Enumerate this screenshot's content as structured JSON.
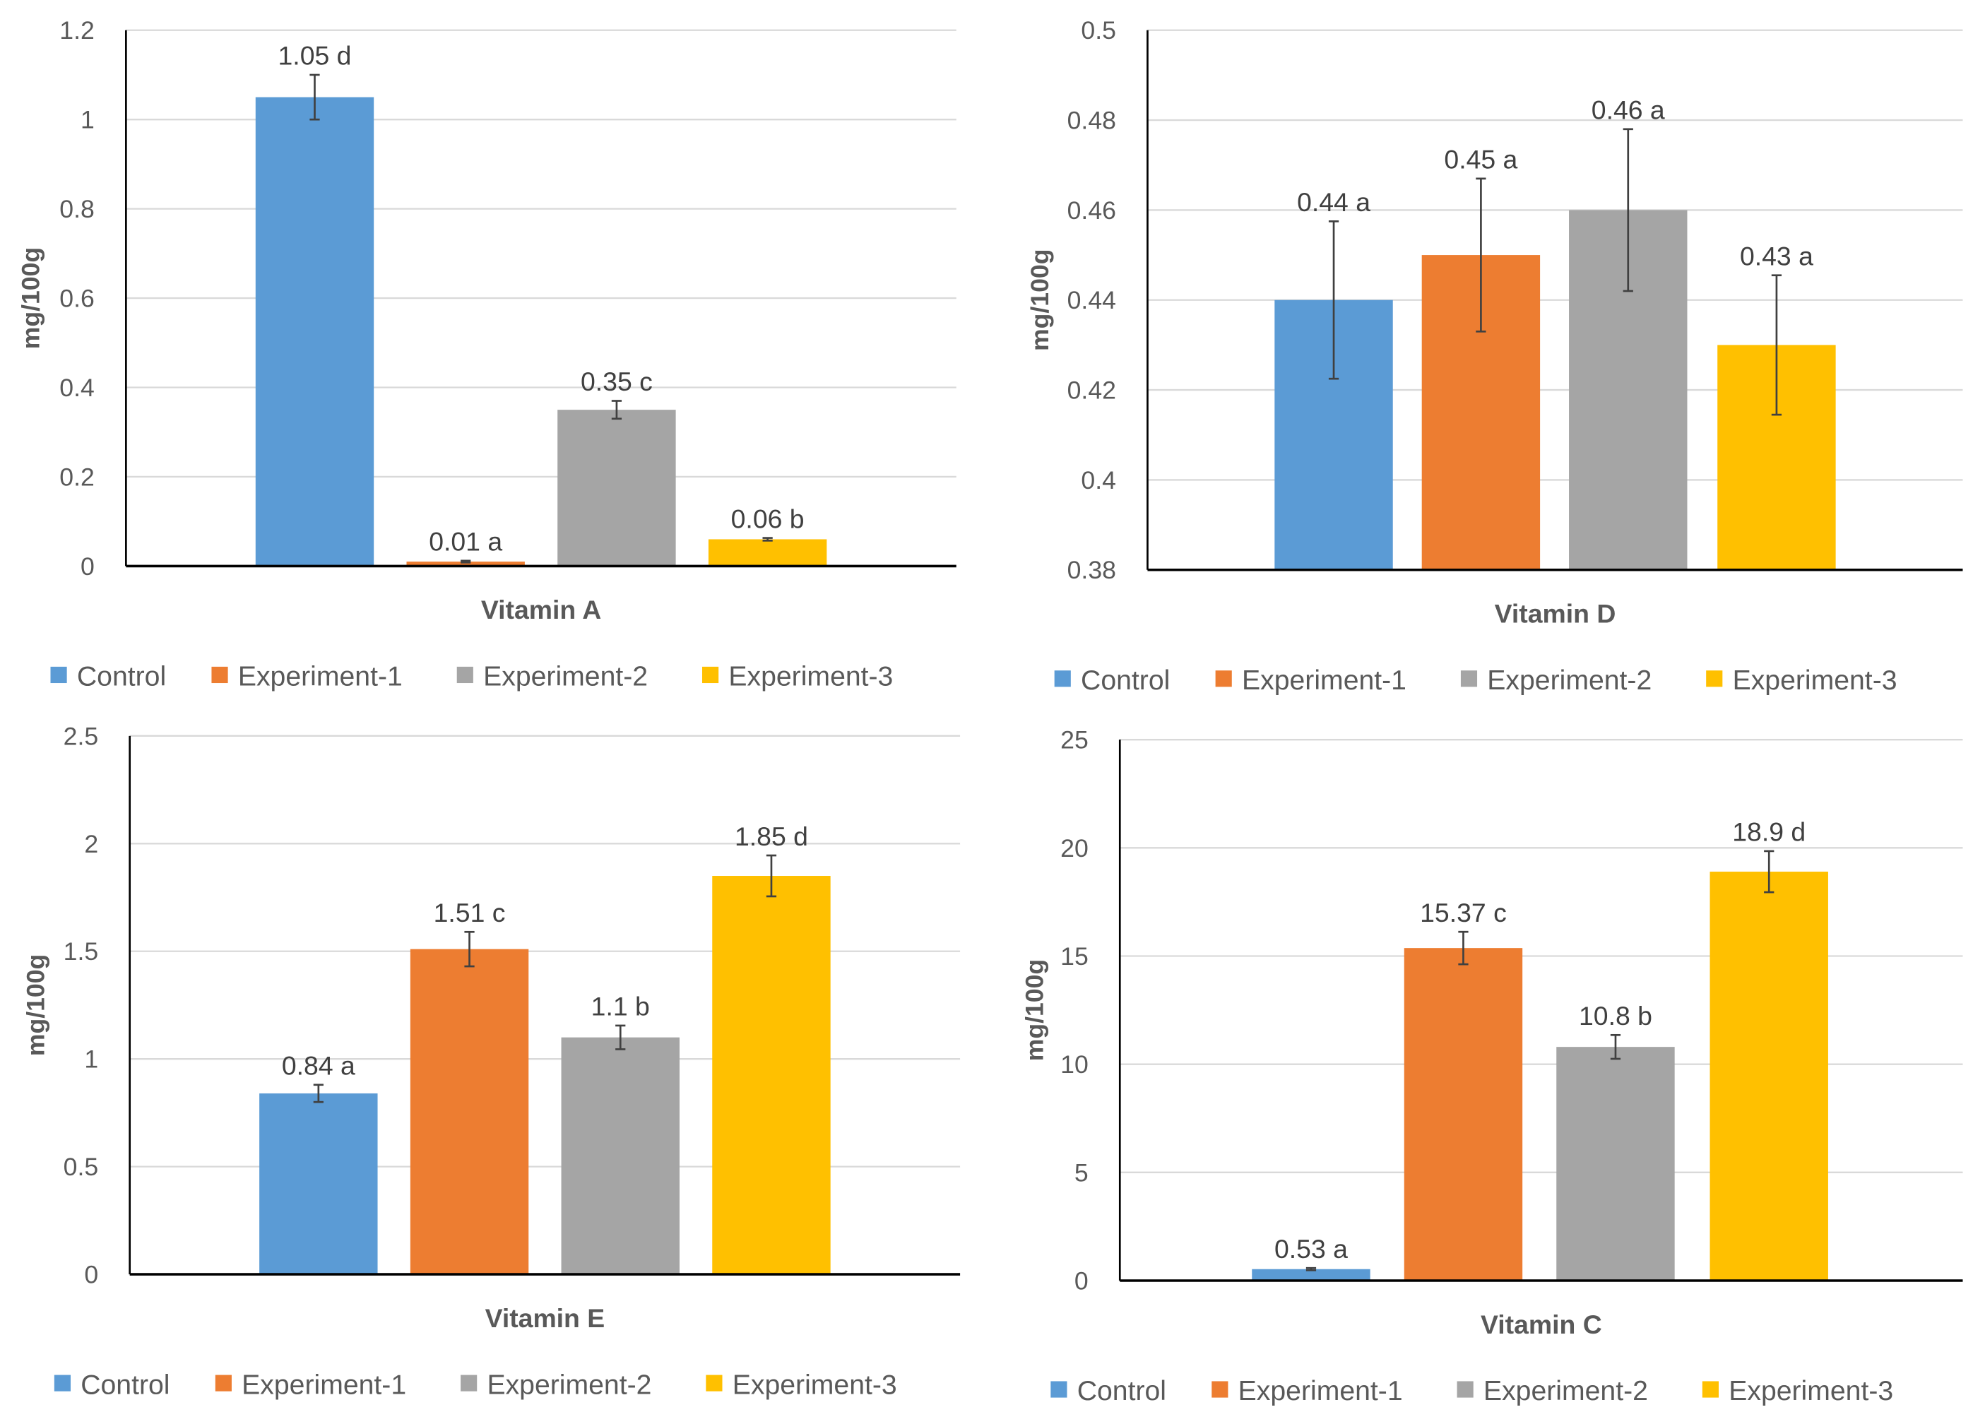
{
  "chart_data": [
    {
      "type": "bar",
      "title": "Vitamin A",
      "xlabel": "Vitamin A",
      "ylabel": "mg/100g",
      "ylim": [
        0,
        1.2
      ],
      "yticks": [
        "0",
        "0.2",
        "0.4",
        "0.6",
        "0.8",
        "1",
        "1.2"
      ],
      "ytick_values": [
        0,
        0.2,
        0.4,
        0.6,
        0.8,
        1,
        1.2
      ],
      "grid": true,
      "legend_position": "bottom",
      "series": [
        {
          "name": "Control",
          "value": 1.05,
          "error": 0.05,
          "label": "1.05 d"
        },
        {
          "name": "Experiment-1",
          "value": 0.01,
          "error": 0.002,
          "label": "0.01 a"
        },
        {
          "name": "Experiment-2",
          "value": 0.35,
          "error": 0.02,
          "label": "0.35 c"
        },
        {
          "name": "Experiment-3",
          "value": 0.06,
          "error": 0.003,
          "label": "0.06 b"
        }
      ]
    },
    {
      "type": "bar",
      "title": "Vitamin D",
      "xlabel": "Vitamin D",
      "ylabel": "mg/100g",
      "ylim": [
        0.38,
        0.5
      ],
      "yticks": [
        "0.38",
        "0.4",
        "0.42",
        "0.44",
        "0.46",
        "0.48",
        "0.5"
      ],
      "ytick_values": [
        0.38,
        0.4,
        0.42,
        0.44,
        0.46,
        0.48,
        0.5
      ],
      "grid": true,
      "legend_position": "bottom",
      "series": [
        {
          "name": "Control",
          "value": 0.44,
          "error": 0.0175,
          "label": "0.44 a"
        },
        {
          "name": "Experiment-1",
          "value": 0.45,
          "error": 0.017,
          "label": "0.45 a"
        },
        {
          "name": "Experiment-2",
          "value": 0.46,
          "error": 0.018,
          "label": "0.46 a"
        },
        {
          "name": "Experiment-3",
          "value": 0.43,
          "error": 0.0155,
          "label": "0.43 a"
        }
      ]
    },
    {
      "type": "bar",
      "title": "Vitamin E",
      "xlabel": "Vitamin E",
      "ylabel": "mg/100g",
      "ylim": [
        0,
        2.5
      ],
      "yticks": [
        "0",
        "0.5",
        "1",
        "1.5",
        "2",
        "2.5"
      ],
      "ytick_values": [
        0,
        0.5,
        1,
        1.5,
        2,
        2.5
      ],
      "grid": true,
      "legend_position": "bottom",
      "series": [
        {
          "name": "Control",
          "value": 0.84,
          "error": 0.04,
          "label": "0.84 a"
        },
        {
          "name": "Experiment-1",
          "value": 1.51,
          "error": 0.08,
          "label": "1.51 c"
        },
        {
          "name": "Experiment-2",
          "value": 1.1,
          "error": 0.055,
          "label": "1.1 b"
        },
        {
          "name": "Experiment-3",
          "value": 1.85,
          "error": 0.095,
          "label": "1.85 d"
        }
      ]
    },
    {
      "type": "bar",
      "title": "Vitamin C",
      "xlabel": "Vitamin C",
      "ylabel": "mg/100g",
      "ylim": [
        0,
        25
      ],
      "yticks": [
        "0",
        "5",
        "10",
        "15",
        "20",
        "25"
      ],
      "ytick_values": [
        0,
        5,
        10,
        15,
        20,
        25
      ],
      "grid": true,
      "legend_position": "bottom",
      "series": [
        {
          "name": "Control",
          "value": 0.53,
          "error": 0.05,
          "label": "0.53 a"
        },
        {
          "name": "Experiment-1",
          "value": 15.37,
          "error": 0.75,
          "label": "15.37 c"
        },
        {
          "name": "Experiment-2",
          "value": 10.8,
          "error": 0.55,
          "label": "10.8 b"
        },
        {
          "name": "Experiment-3",
          "value": 18.9,
          "error": 0.95,
          "label": "18.9 d"
        }
      ]
    }
  ],
  "colors": {
    "Control": "#5B9BD5",
    "Experiment-1": "#ED7D31",
    "Experiment-2": "#A5A5A5",
    "Experiment-3": "#FFC000",
    "grid": "#D9D9D9",
    "axis": "#000000",
    "error": "#404040"
  }
}
